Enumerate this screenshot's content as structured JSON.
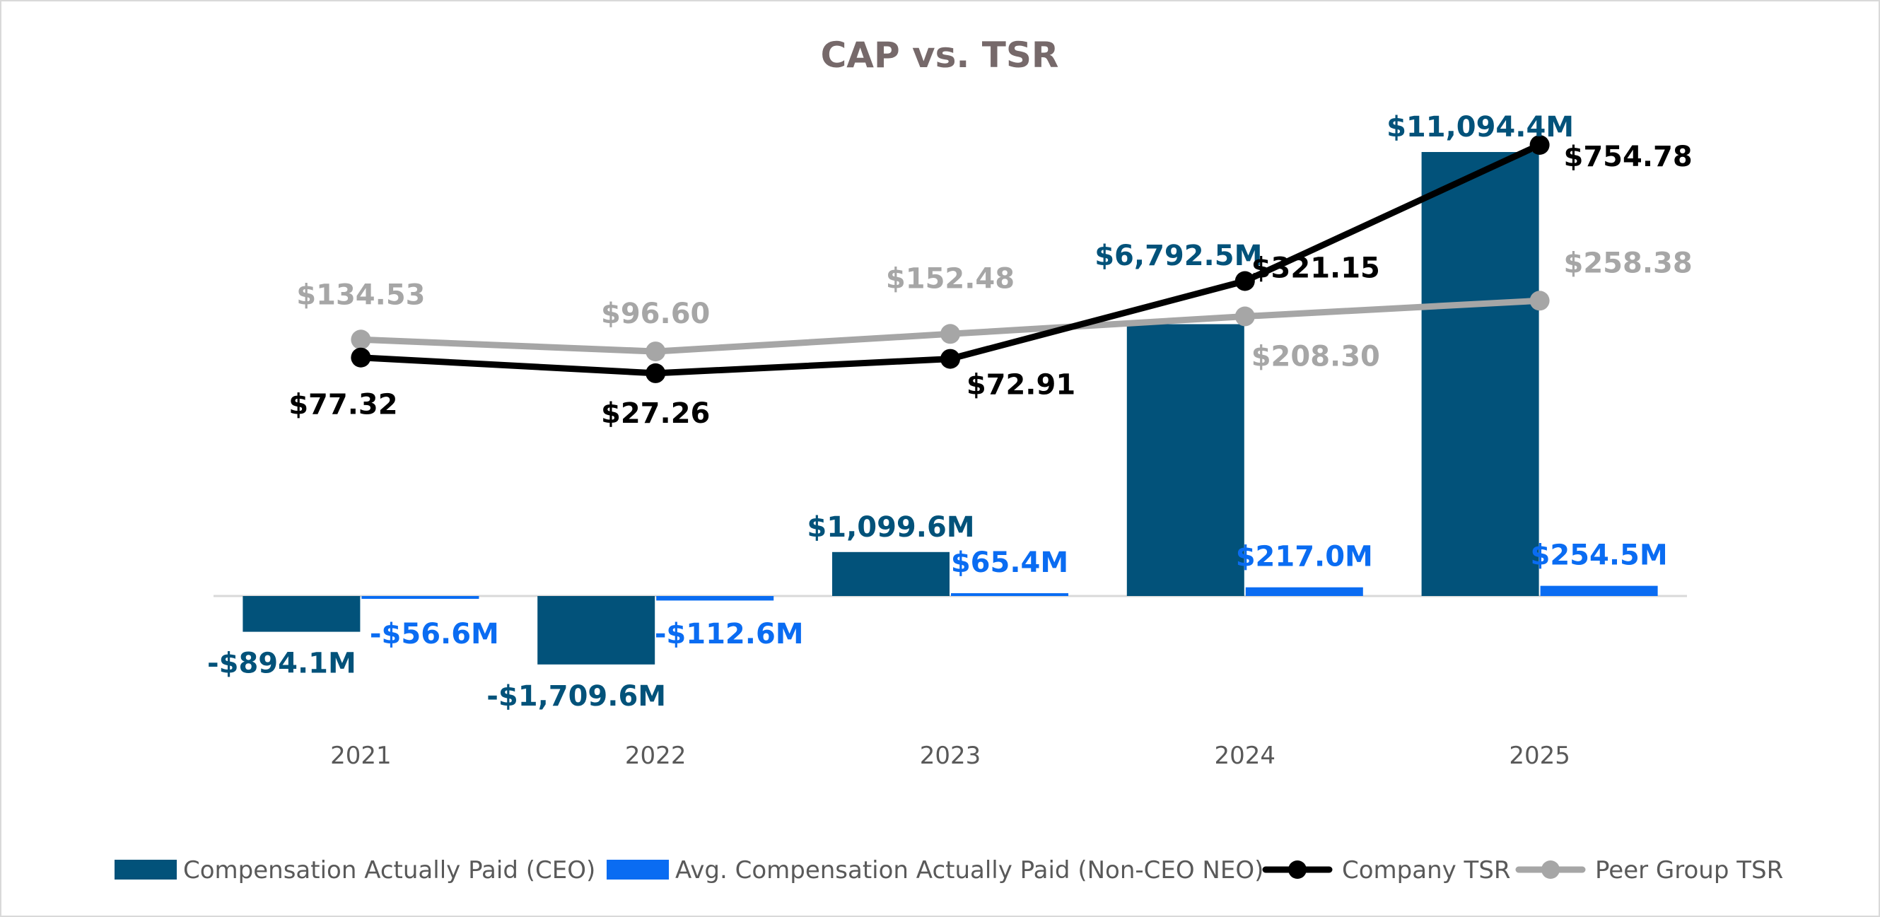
{
  "colors": {
    "ceo_bar": "#02527a",
    "neo_bar": "#0a6cf2",
    "company_tsr": "#000000",
    "peer_tsr": "#a6a6a6",
    "title": "#76696a",
    "axis": "#d9d9d9",
    "tick": "#595959"
  },
  "chart_data": {
    "type": "bar",
    "title": "CAP vs. TSR",
    "xlabel": "",
    "ylabel": "",
    "categories": [
      "2021",
      "2022",
      "2023",
      "2024",
      "2025"
    ],
    "grid": false,
    "legend_position": "bottom",
    "series": [
      {
        "name": "Compensation Actually Paid (CEO)",
        "type": "bar",
        "axis": "compensation",
        "values": [
          -894.1,
          -1709.6,
          1099.6,
          6792.5,
          11094.4
        ],
        "labels": [
          "-$894.1M",
          "-$1,709.6M",
          "$1,099.6M",
          "$6,792.5M",
          "$11,094.4M"
        ]
      },
      {
        "name": "Avg. Compensation Actually Paid (Non-CEO NEO)",
        "type": "bar",
        "axis": "compensation",
        "values": [
          -56.6,
          -112.6,
          65.4,
          217.0,
          254.5
        ],
        "labels": [
          "-$56.6M",
          "-$112.6M",
          "$65.4M",
          "$217.0M",
          "$254.5M"
        ]
      },
      {
        "name": "Company TSR",
        "type": "line",
        "axis": "tsr",
        "values": [
          77.32,
          27.26,
          72.91,
          321.15,
          754.78
        ],
        "labels": [
          "$77.32",
          "$27.26",
          "$72.91",
          "$321.15",
          "$754.78"
        ]
      },
      {
        "name": "Peer Group TSR",
        "type": "line",
        "axis": "tsr",
        "values": [
          134.53,
          96.6,
          152.48,
          208.3,
          258.38
        ],
        "labels": [
          "$134.53",
          "$96.60",
          "$152.48",
          "$208.30",
          "$258.38"
        ]
      }
    ]
  }
}
